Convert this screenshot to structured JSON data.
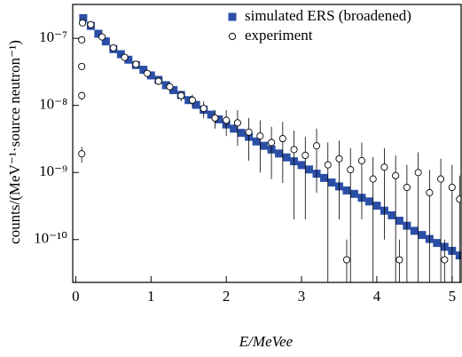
{
  "chart_data": {
    "type": "scatter",
    "x_label": "E/MeVee",
    "y_label": "counts/(MeV⁻¹·source neutron⁻¹)",
    "log_y": true,
    "legend_position": "upper right",
    "xlim": [
      -0.04,
      5.12
    ],
    "ylim": [
      2.3e-11,
      3.2e-07
    ],
    "xticks": [
      0,
      1,
      2,
      3,
      4,
      5
    ],
    "yticks": [
      {
        "value": 1e-10,
        "label": "10⁻¹⁰"
      },
      {
        "value": 1e-09,
        "label": "10⁻⁹"
      },
      {
        "value": 1e-08,
        "label": "10⁻⁸"
      },
      {
        "value": 1e-07,
        "label": "10⁻⁷"
      }
    ],
    "series": [
      {
        "name": "simulated ERS (broadened)",
        "color": "#2b4fa6",
        "marker": "square",
        "x": [
          0.1,
          0.2,
          0.3,
          0.4,
          0.5,
          0.6,
          0.7,
          0.8,
          0.9,
          1.0,
          1.1,
          1.2,
          1.3,
          1.4,
          1.5,
          1.6,
          1.7,
          1.8,
          1.9,
          2.0,
          2.1,
          2.2,
          2.3,
          2.4,
          2.5,
          2.6,
          2.7,
          2.8,
          2.9,
          3.0,
          3.1,
          3.2,
          3.3,
          3.4,
          3.5,
          3.6,
          3.7,
          3.8,
          3.9,
          4.0,
          4.1,
          4.2,
          4.3,
          4.4,
          4.5,
          4.6,
          4.7,
          4.8,
          4.9,
          5.0,
          5.1
        ],
        "values": [
          2e-07,
          1.53e-07,
          1.17e-07,
          9e-08,
          6.9e-08,
          5.8e-08,
          4.8e-08,
          4e-08,
          3.4e-08,
          2.8e-08,
          2.4e-08,
          2e-08,
          1.69e-08,
          1.43e-08,
          1.2e-08,
          1.02e-08,
          8.6e-09,
          7.3e-09,
          6.2e-09,
          5.2e-09,
          4.5e-09,
          3.9e-09,
          3.4e-09,
          2.9e-09,
          2.5e-09,
          2.2e-09,
          1.92e-09,
          1.68e-09,
          1.47e-09,
          1.29e-09,
          1.11e-09,
          9.6e-10,
          8.3e-10,
          7.1e-10,
          6.2e-10,
          5.4e-10,
          4.8e-10,
          4.2e-10,
          3.7e-10,
          3.2e-10,
          2.7e-10,
          2.3e-10,
          1.91e-10,
          1.61e-10,
          1.35e-10,
          1.17e-10,
          1.02e-10,
          8.9e-11,
          7.8e-11,
          6.8e-11,
          5.8e-11
        ]
      },
      {
        "name": "experiment",
        "color": "#000000",
        "marker": "circle",
        "x": [
          0.08,
          0.08,
          0.08,
          0.08,
          0.09,
          0.2,
          0.35,
          0.5,
          0.65,
          0.8,
          0.95,
          1.1,
          1.25,
          1.4,
          1.55,
          1.7,
          1.85,
          2.0,
          2.15,
          2.3,
          2.45,
          2.6,
          2.75,
          2.9,
          3.05,
          3.2,
          3.35,
          3.5,
          3.6,
          3.65,
          3.8,
          3.95,
          4.1,
          4.25,
          4.3,
          4.4,
          4.55,
          4.7,
          4.85,
          4.9,
          5.0,
          5.1
        ],
        "values": [
          1.9e-09,
          1.4e-08,
          3.8e-08,
          9.5e-08,
          1.7e-07,
          1.6e-07,
          1.05e-07,
          7.2e-08,
          5.2e-08,
          4.1e-08,
          3e-08,
          2.3e-08,
          1.9e-08,
          1.4e-08,
          1.2e-08,
          9e-09,
          6.5e-09,
          6e-09,
          5.5e-09,
          4e-09,
          3.5e-09,
          2.8e-09,
          3.2e-09,
          2.2e-09,
          1.8e-09,
          2.5e-09,
          1.3e-09,
          1.6e-09,
          5e-11,
          1.1e-09,
          1.5e-09,
          8e-10,
          1.2e-09,
          9e-10,
          5e-11,
          6e-10,
          1e-09,
          5e-10,
          8e-10,
          5e-11,
          6e-10,
          4e-10
        ],
        "errors": [
          5e-10,
          2e-09,
          4e-09,
          8e-09,
          1.5e-08,
          1.5e-08,
          1e-08,
          7e-09,
          5e-09,
          4e-09,
          3.5e-09,
          3e-09,
          3e-09,
          2.5e-09,
          2.5e-09,
          2.5e-09,
          2e-09,
          2.5e-09,
          3e-09,
          2.5e-09,
          2.5e-09,
          2e-09,
          2.5e-09,
          2e-09,
          1.6e-09,
          2e-09,
          1.5e-09,
          1.4e-09,
          5e-11,
          1.2e-09,
          1.3e-09,
          9e-10,
          1.1e-09,
          9e-10,
          5e-11,
          7e-10,
          1e-09,
          6e-10,
          8e-10,
          5e-11,
          7e-10,
          5e-10
        ]
      }
    ]
  }
}
